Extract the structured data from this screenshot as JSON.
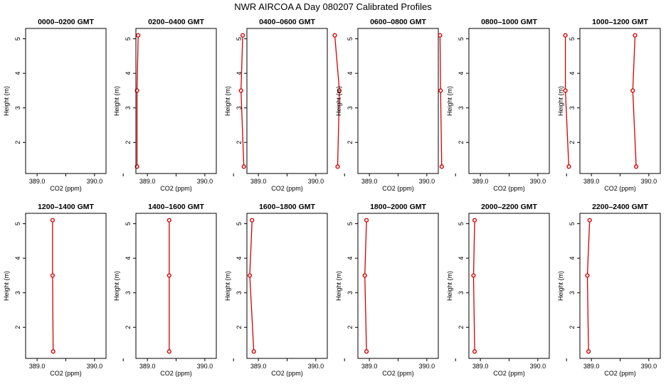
{
  "figure": {
    "title": "NWR AIRCOA A  Day 080207  Calibrated Profiles"
  },
  "colors": {
    "profile": "#d40000",
    "marker": "#d40000",
    "frame": "#000000"
  },
  "chart_data": [
    {
      "type": "line",
      "title": "0000–0200 GMT",
      "xlabel": "CO2 (ppm)",
      "ylabel": "Height (m)",
      "xlim": [
        388.8,
        390.2
      ],
      "ylim": [
        1.1,
        5.3
      ],
      "xticks": [
        389.0,
        389.5,
        390.0,
        390.5
      ],
      "xtick_labels": [
        "389.0",
        "",
        "390.0",
        ""
      ],
      "yticks": [
        2,
        3,
        4,
        5
      ],
      "x": [
        390.74,
        390.74,
        390.76
      ],
      "y": [
        1.3,
        3.5,
        5.1
      ]
    },
    {
      "type": "line",
      "title": "0200–0400 GMT",
      "xlabel": "CO2 (ppm)",
      "ylabel": "Height (m)",
      "xlim": [
        388.8,
        390.2
      ],
      "ylim": [
        1.1,
        5.3
      ],
      "xticks": [
        389.0,
        389.5,
        390.0,
        390.5
      ],
      "xtick_labels": [
        "389.0",
        "",
        "390.0",
        ""
      ],
      "yticks": [
        2,
        3,
        4,
        5
      ],
      "x": [
        390.68,
        390.63,
        390.66
      ],
      "y": [
        1.3,
        3.5,
        5.1
      ]
    },
    {
      "type": "line",
      "title": "0400–0600 GMT",
      "xlabel": "CO2 (ppm)",
      "ylabel": "Height (m)",
      "xlim": [
        388.8,
        390.2
      ],
      "ylim": [
        1.1,
        5.3
      ],
      "xticks": [
        389.0,
        389.5,
        390.0,
        390.5
      ],
      "xtick_labels": [
        "389.0",
        "",
        "390.0",
        ""
      ],
      "yticks": [
        2,
        3,
        4,
        5
      ],
      "x": [
        390.38,
        390.41,
        390.33
      ],
      "y": [
        1.3,
        3.5,
        5.1
      ]
    },
    {
      "type": "line",
      "title": "0600–0800 GMT",
      "xlabel": "CO2 (ppm)",
      "ylabel": "Height (m)",
      "xlim": [
        388.8,
        390.2
      ],
      "ylim": [
        1.1,
        5.3
      ],
      "xticks": [
        389.0,
        389.5,
        390.0,
        390.5
      ],
      "xtick_labels": [
        "389.0",
        "",
        "390.0",
        ""
      ],
      "yticks": [
        2,
        3,
        4,
        5
      ],
      "x": [
        390.26,
        390.24,
        390.23
      ],
      "y": [
        1.3,
        3.5,
        5.1
      ]
    },
    {
      "type": "line",
      "title": "0800–1000 GMT",
      "xlabel": "CO2 (ppm)",
      "ylabel": "Height (m)",
      "xlim": [
        388.8,
        390.2
      ],
      "ylim": [
        1.1,
        5.3
      ],
      "xticks": [
        389.0,
        389.5,
        390.0,
        390.5
      ],
      "xtick_labels": [
        "389.0",
        "",
        "390.0",
        ""
      ],
      "yticks": [
        2,
        3,
        4,
        5
      ],
      "x": [
        390.54,
        390.48,
        390.48
      ],
      "y": [
        1.3,
        3.5,
        5.1
      ]
    },
    {
      "type": "line",
      "title": "1000–1200 GMT",
      "xlabel": "CO2 (ppm)",
      "ylabel": "Height (m)",
      "xlim": [
        388.8,
        390.2
      ],
      "ylim": [
        1.1,
        5.3
      ],
      "xticks": [
        389.0,
        389.5,
        390.0,
        390.5
      ],
      "xtick_labels": [
        "389.0",
        "",
        "390.0",
        ""
      ],
      "yticks": [
        2,
        3,
        4,
        5
      ],
      "x": [
        389.78,
        389.72,
        389.76
      ],
      "y": [
        1.3,
        3.5,
        5.1
      ]
    },
    {
      "type": "line",
      "title": "1200–1400 GMT",
      "xlabel": "CO2 (ppm)",
      "ylabel": "Height (m)",
      "xlim": [
        388.8,
        390.2
      ],
      "ylim": [
        1.1,
        5.3
      ],
      "xticks": [
        389.0,
        389.5,
        390.0,
        390.5
      ],
      "xtick_labels": [
        "389.0",
        "",
        "390.0",
        ""
      ],
      "yticks": [
        2,
        3,
        4,
        5
      ],
      "x": [
        389.28,
        389.27,
        389.27
      ],
      "y": [
        1.3,
        3.5,
        5.1
      ]
    },
    {
      "type": "line",
      "title": "1400–1600 GMT",
      "xlabel": "CO2 (ppm)",
      "ylabel": "Height (m)",
      "xlim": [
        388.8,
        390.2
      ],
      "ylim": [
        1.1,
        5.3
      ],
      "xticks": [
        389.0,
        389.5,
        390.0,
        390.5
      ],
      "xtick_labels": [
        "389.0",
        "",
        "390.0",
        ""
      ],
      "yticks": [
        2,
        3,
        4,
        5
      ],
      "x": [
        389.38,
        389.38,
        389.38
      ],
      "y": [
        1.3,
        3.5,
        5.1
      ]
    },
    {
      "type": "line",
      "title": "1600–1800 GMT",
      "xlabel": "CO2 (ppm)",
      "ylabel": "Height (m)",
      "xlim": [
        388.8,
        390.2
      ],
      "ylim": [
        1.1,
        5.3
      ],
      "xticks": [
        389.0,
        389.5,
        390.0,
        390.5
      ],
      "xtick_labels": [
        "389.0",
        "",
        "390.0",
        ""
      ],
      "yticks": [
        2,
        3,
        4,
        5
      ],
      "x": [
        388.92,
        388.85,
        388.89
      ],
      "y": [
        1.3,
        3.5,
        5.1
      ]
    },
    {
      "type": "line",
      "title": "1800–2000 GMT",
      "xlabel": "CO2 (ppm)",
      "ylabel": "Height (m)",
      "xlim": [
        388.8,
        390.2
      ],
      "ylim": [
        1.1,
        5.3
      ],
      "xticks": [
        389.0,
        389.5,
        390.0,
        390.5
      ],
      "xtick_labels": [
        "389.0",
        "",
        "390.0",
        ""
      ],
      "yticks": [
        2,
        3,
        4,
        5
      ],
      "x": [
        388.95,
        388.92,
        388.95
      ],
      "y": [
        1.3,
        3.5,
        5.1
      ]
    },
    {
      "type": "line",
      "title": "2000–2200 GMT",
      "xlabel": "CO2 (ppm)",
      "ylabel": "Height (m)",
      "xlim": [
        388.8,
        390.2
      ],
      "ylim": [
        1.1,
        5.3
      ],
      "xticks": [
        389.0,
        389.5,
        390.0,
        390.5
      ],
      "xtick_labels": [
        "389.0",
        "",
        "390.0",
        ""
      ],
      "yticks": [
        2,
        3,
        4,
        5
      ],
      "x": [
        388.9,
        388.88,
        388.9
      ],
      "y": [
        1.3,
        3.5,
        5.1
      ]
    },
    {
      "type": "line",
      "title": "2200–2400 GMT",
      "xlabel": "CO2 (ppm)",
      "ylabel": "Height (m)",
      "xlim": [
        388.8,
        390.2
      ],
      "ylim": [
        1.1,
        5.3
      ],
      "xticks": [
        389.0,
        389.5,
        390.0,
        390.5
      ],
      "xtick_labels": [
        "389.0",
        "",
        "390.0",
        ""
      ],
      "yticks": [
        2,
        3,
        4,
        5
      ],
      "x": [
        388.95,
        388.93,
        388.97
      ],
      "y": [
        1.3,
        3.5,
        5.1
      ]
    }
  ]
}
